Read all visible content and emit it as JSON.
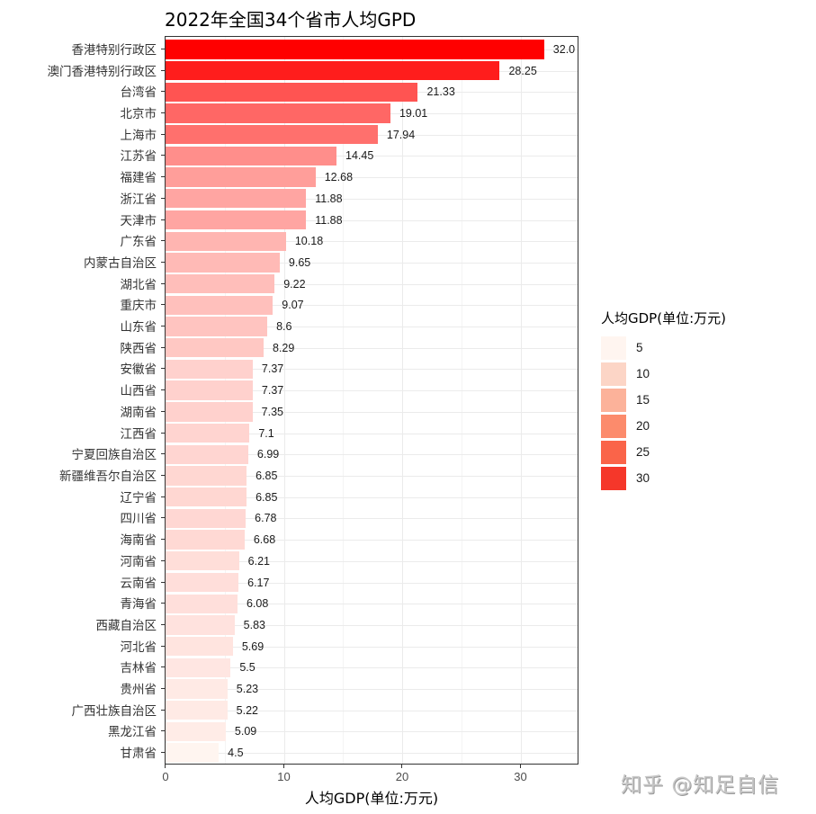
{
  "chart_data": {
    "type": "bar",
    "orientation": "horizontal",
    "title": "2022年全国34个省市人均GPD",
    "xlabel": "人均GDP(单位:万元)",
    "ylabel": "",
    "xlim": [
      0,
      35
    ],
    "xticks": [
      0,
      10,
      20,
      30
    ],
    "grid": true,
    "legend_position": "right",
    "categories": [
      "香港特别行政区",
      "澳门香港特别行政区",
      "台湾省",
      "北京市",
      "上海市",
      "江苏省",
      "福建省",
      "浙江省",
      "天津市",
      "广东省",
      "内蒙古自治区",
      "湖北省",
      "重庆市",
      "山东省",
      "陕西省",
      "安徽省",
      "山西省",
      "湖南省",
      "江西省",
      "宁夏回族自治区",
      "新疆维吾尔自治区",
      "辽宁省",
      "四川省",
      "海南省",
      "河南省",
      "云南省",
      "青海省",
      "西藏自治区",
      "河北省",
      "吉林省",
      "贵州省",
      "广西壮族自治区",
      "黑龙江省",
      "甘肃省"
    ],
    "values": [
      32.0,
      28.25,
      21.33,
      19.01,
      17.94,
      14.45,
      12.68,
      11.88,
      11.88,
      10.18,
      9.65,
      9.22,
      9.07,
      8.6,
      8.29,
      7.37,
      7.37,
      7.35,
      7.1,
      6.99,
      6.85,
      6.85,
      6.78,
      6.68,
      6.21,
      6.17,
      6.08,
      5.83,
      5.69,
      5.5,
      5.23,
      5.22,
      5.09,
      4.5
    ],
    "value_labels": [
      "32.0",
      "28.25",
      "21.33",
      "19.01",
      "17.94",
      "14.45",
      "12.68",
      "11.88",
      "11.88",
      "10.18",
      "9.65",
      "9.22",
      "9.07",
      "8.6",
      "8.29",
      "7.37",
      "7.37",
      "7.35",
      "7.1",
      "6.99",
      "6.85",
      "6.85",
      "6.78",
      "6.68",
      "6.21",
      "6.17",
      "6.08",
      "5.83",
      "5.69",
      "5.5",
      "5.23",
      "5.22",
      "5.09",
      "4.5"
    ],
    "legend": {
      "title": "人均GDP(单位:万元)",
      "entries": [
        {
          "label": "5",
          "color": "#fff5f0"
        },
        {
          "label": "10",
          "color": "#fcd5c6"
        },
        {
          "label": "15",
          "color": "#fcb29a"
        },
        {
          "label": "20",
          "color": "#fc8b6c"
        },
        {
          "label": "25",
          "color": "#fa6449"
        },
        {
          "label": "30",
          "color": "#f5372a"
        }
      ]
    },
    "color_scale": {
      "low": "#fff5f0",
      "high": "#ff0000",
      "domain": [
        4.5,
        32
      ]
    }
  },
  "watermark": "知乎 @知足自信"
}
